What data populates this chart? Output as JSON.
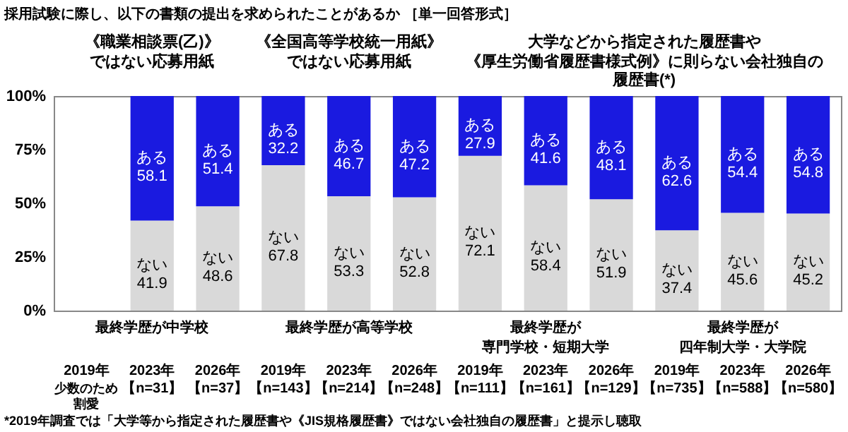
{
  "chart_data": {
    "type": "bar",
    "stacked": true,
    "title": "採用試験に際し、以下の書類の提出を求められたことがあるか ［単一回答形式］",
    "categories": [
      "2019年",
      "2023年",
      "2026年",
      "2019年",
      "2023年",
      "2026年",
      "2019年",
      "2023年",
      "2026年",
      "2019年",
      "2023年",
      "2026年"
    ],
    "series": [
      {
        "name": "ない",
        "color": "#d9d9d9",
        "values": [
          null,
          41.9,
          48.6,
          67.8,
          53.3,
          52.8,
          72.1,
          58.4,
          51.9,
          37.4,
          45.6,
          45.2
        ]
      },
      {
        "name": "ある",
        "color": "#1a1ae0",
        "values": [
          null,
          58.1,
          51.4,
          32.2,
          46.7,
          47.2,
          27.9,
          41.6,
          48.1,
          62.6,
          54.4,
          54.8
        ]
      }
    ],
    "ylim": [
      0,
      100
    ],
    "yticks": [
      {
        "value": 0,
        "label": "0%"
      },
      {
        "value": 25,
        "label": "25%"
      },
      {
        "value": 50,
        "label": "50%"
      },
      {
        "value": 75,
        "label": "75%"
      },
      {
        "value": 100,
        "label": "100%"
      }
    ],
    "data_labels": true,
    "annotations": [
      "最終学歴が中学校",
      "最終学歴が高等学校",
      "最終学歴が",
      "専門学校・短期大学",
      "最終学歴が",
      "四年制大学・大学院",
      "《職業相談票(乙)》",
      "ではない応募用紙",
      "《全国高等学校統一用紙》",
      "ではない応募用紙",
      "大学などから指定された履歴書や",
      "《厚生労働省履歴書様式例》に則らない会社独自の",
      "履歴書(*)",
      "*2019年調査では「大学等から指定された履歴書や《JIS規格履歴書》ではない会社独自の履歴書」と提示し聴取",
      "少数のため",
      "割愛",
      "【n=31】",
      "【n=37】",
      "【n=143】",
      "【n=214】",
      "【n=248】",
      "【n=111】",
      "【n=161】",
      "【n=129】",
      "【n=735】",
      "【n=588】",
      "【n=580】"
    ]
  }
}
